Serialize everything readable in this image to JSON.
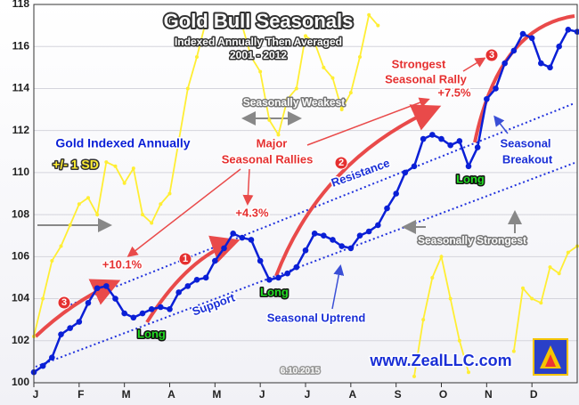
{
  "chart_data": {
    "type": "line",
    "title": "Gold Bull Seasonals",
    "subtitle": "Indexed Annually Then Averaged",
    "period": "2001 - 2012",
    "xlim": [
      0,
      12
    ],
    "xticks": [
      {
        "value": 0,
        "label": "J"
      },
      {
        "value": 1,
        "label": "F"
      },
      {
        "value": 2,
        "label": "M"
      },
      {
        "value": 3,
        "label": "A"
      },
      {
        "value": 4,
        "label": "M"
      },
      {
        "value": 5,
        "label": "J"
      },
      {
        "value": 6,
        "label": "J"
      },
      {
        "value": 7,
        "label": "A"
      },
      {
        "value": 8,
        "label": "S"
      },
      {
        "value": 9,
        "label": "O"
      },
      {
        "value": 10,
        "label": "N"
      },
      {
        "value": 11,
        "label": "D"
      }
    ],
    "ylim": [
      100,
      118
    ],
    "yticks": [
      100,
      102,
      104,
      106,
      108,
      110,
      112,
      114,
      116,
      118
    ],
    "grid": true,
    "x": [
      0,
      0.2,
      0.4,
      0.6,
      0.8,
      1,
      1.2,
      1.4,
      1.6,
      1.8,
      2,
      2.2,
      2.4,
      2.6,
      2.8,
      3,
      3.2,
      3.4,
      3.6,
      3.8,
      4,
      4.2,
      4.4,
      4.6,
      4.8,
      5,
      5.2,
      5.4,
      5.6,
      5.8,
      6,
      6.2,
      6.4,
      6.6,
      6.8,
      7,
      7.2,
      7.4,
      7.6,
      7.8,
      8,
      8.2,
      8.4,
      8.6,
      8.8,
      9,
      9.2,
      9.4,
      9.6,
      9.8,
      10,
      10.2,
      10.4,
      10.6,
      10.8,
      11,
      11.2,
      11.4,
      11.6,
      11.8,
      12
    ],
    "series": [
      {
        "name": "+/- 1 SD",
        "color": "#ffee33",
        "values": [
          102.2,
          104,
          105.8,
          106.5,
          107.5,
          108.5,
          108.8,
          108,
          110.5,
          110.3,
          109.5,
          110.2,
          108,
          107.6,
          108.5,
          109,
          111.5,
          114,
          115.5,
          117.2,
          null,
          null,
          null,
          117,
          115.5,
          114.8,
          112.5,
          111.8,
          113.5,
          114,
          116.5,
          116.2,
          115,
          114.5,
          113,
          113.8,
          115.5,
          117.5,
          117,
          null,
          null,
          null,
          null,
          null,
          null,
          null,
          null,
          null,
          null,
          null,
          null,
          null,
          null,
          null,
          null,
          null,
          null,
          null,
          null,
          null,
          null
        ]
      },
      {
        "name": "+/- 1 SD",
        "color": "#ffee33",
        "values": [
          null,
          null,
          null,
          null,
          null,
          null,
          null,
          null,
          null,
          null,
          null,
          null,
          null,
          null,
          null,
          null,
          null,
          null,
          null,
          null,
          null,
          null,
          null,
          null,
          null,
          null,
          null,
          null,
          null,
          null,
          null,
          null,
          null,
          null,
          null,
          null,
          null,
          null,
          null,
          null,
          null,
          null,
          100.3,
          103,
          105,
          106,
          104,
          102,
          100.5,
          null,
          null,
          null,
          null,
          101.5,
          104.5,
          104,
          103.8,
          105.5,
          105.2,
          106.2,
          106.5
        ]
      },
      {
        "name": "Gold Indexed Annually",
        "color": "#0a1fd6",
        "values": [
          100.5,
          100.8,
          101.2,
          102.3,
          102.6,
          102.9,
          103.8,
          104.5,
          104.6,
          104,
          103.3,
          103.1,
          103.3,
          103.5,
          103.6,
          103.5,
          104.3,
          104.6,
          104.9,
          105,
          105.8,
          106.4,
          107.1,
          106.9,
          106.8,
          105.8,
          104.9,
          105,
          105.2,
          105.5,
          106.3,
          107.1,
          107,
          106.8,
          106.5,
          106.4,
          107,
          107.2,
          107.5,
          108.3,
          109,
          110,
          110.3,
          111.6,
          111.8,
          111.6,
          111.3,
          111.5,
          110.3,
          111.2,
          113.5,
          114,
          115.2,
          115.8,
          116.6,
          116.4,
          115.2,
          115,
          116,
          116.8,
          116.7
        ]
      }
    ],
    "annotations": [
      "Seasonally Weakest",
      "Seasonally Strongest",
      "Major",
      "Seasonal Rallies",
      "+10.1%",
      "+4.3%",
      "+7.5%",
      "Strongest",
      "Seasonal Rally",
      "Resistance",
      "Support",
      "Seasonal Uptrend",
      "Seasonal",
      "Breakout",
      "Long",
      "Long",
      "Long",
      "3",
      "1",
      "2",
      "3",
      "www.ZealLLC.com",
      "6.10.2015"
    ]
  }
}
